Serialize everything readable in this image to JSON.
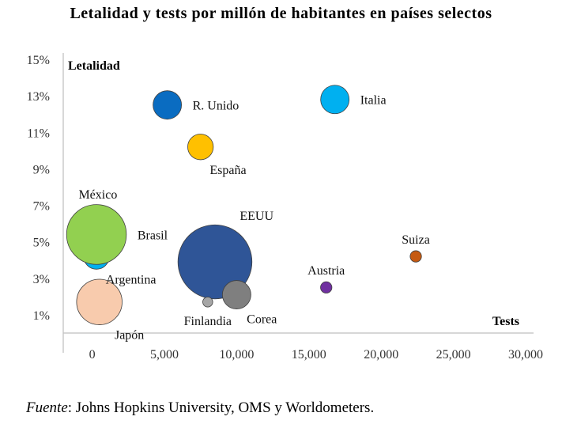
{
  "chart_data": {
    "type": "scatter",
    "title": "Letalidad y tests por millón de habitantes en países selectos",
    "xlabel": "Tests",
    "ylabel": "Letalidad",
    "xlim": [
      -2000,
      30000
    ],
    "ylim": [
      0,
      15
    ],
    "x_ticks": [
      0,
      5000,
      10000,
      15000,
      20000,
      25000,
      30000
    ],
    "x_tick_labels": [
      "0",
      "5,000",
      "10,000",
      "15,000",
      "20,000",
      "25,000",
      "30,000"
    ],
    "y_ticks": [
      1,
      3,
      5,
      7,
      9,
      11,
      13,
      15
    ],
    "y_tick_labels": [
      "1%",
      "3%",
      "5%",
      "7%",
      "9%",
      "11%",
      "13%",
      "15%"
    ],
    "points": [
      {
        "label": "R. Unido",
        "x": 5200,
        "y": 12.5,
        "size": 1.0,
        "color": "#0a6cc1",
        "label_pos": "right"
      },
      {
        "label": "Italia",
        "x": 16800,
        "y": 12.8,
        "size": 1.0,
        "color": "#00b0f0",
        "label_pos": "right"
      },
      {
        "label": "España",
        "x": 7500,
        "y": 10.2,
        "size": 0.9,
        "color": "#ffc000",
        "label_pos": "below-right"
      },
      {
        "label": "México",
        "x": 400,
        "y": 6.2,
        "size": 1.0,
        "color": "#ff0000",
        "label_pos": "above"
      },
      {
        "label": "Argentina",
        "x": 300,
        "y": 4.2,
        "size": 0.9,
        "color": "#00b0f0",
        "label_pos": "below-right"
      },
      {
        "label": "Brasil",
        "x": 300,
        "y": 5.4,
        "size": 2.1,
        "color": "#92d050",
        "label_pos": "right"
      },
      {
        "label": "EEUU",
        "x": 8500,
        "y": 3.9,
        "size": 2.6,
        "color": "#2f5597",
        "label_pos": "above-right"
      },
      {
        "label": "Suiza",
        "x": 22400,
        "y": 4.2,
        "size": 0.4,
        "color": "#c55a11",
        "label_pos": "above"
      },
      {
        "label": "Austria",
        "x": 16200,
        "y": 2.5,
        "size": 0.4,
        "color": "#7030a0",
        "label_pos": "above"
      },
      {
        "label": "Japón",
        "x": 500,
        "y": 1.7,
        "size": 1.6,
        "color": "#f8cbad",
        "label_pos": "below-right"
      },
      {
        "label": "Corea",
        "x": 10000,
        "y": 2.1,
        "size": 1.0,
        "color": "#7f7f7f",
        "label_pos": "below-right"
      },
      {
        "label": "Finlandia",
        "x": 8000,
        "y": 1.7,
        "size": 0.35,
        "color": "#a6a6a6",
        "label_pos": "below"
      }
    ]
  },
  "source": {
    "label": "Fuente",
    "text": ": Johns Hopkins University, OMS y Worldometers."
  }
}
